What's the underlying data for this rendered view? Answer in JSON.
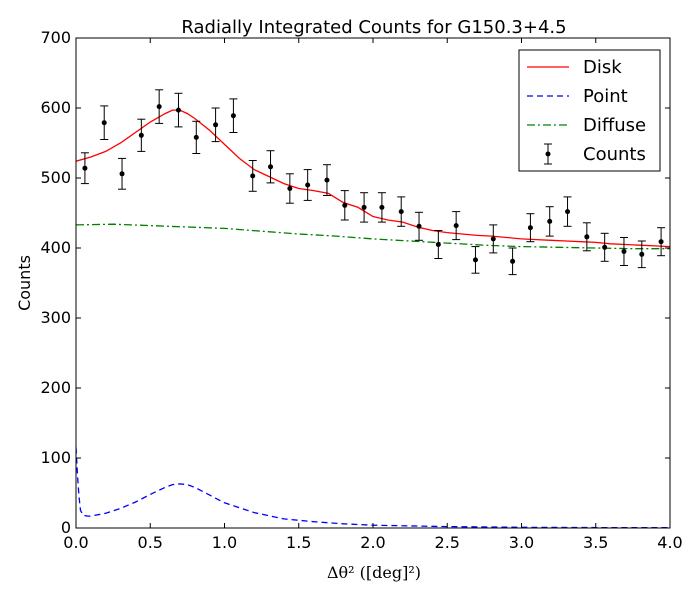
{
  "chart_data": {
    "type": "line",
    "title": "Radially Integrated Counts for G150.3+4.5",
    "xlabel": "Δθ² ([deg]²)",
    "ylabel": "Counts",
    "xlim": [
      0.0,
      4.0
    ],
    "ylim": [
      0,
      700
    ],
    "x_ticks": [
      "0.0",
      "0.5",
      "1.0",
      "1.5",
      "2.0",
      "2.5",
      "3.0",
      "3.5",
      "4.0"
    ],
    "y_ticks": [
      "0",
      "100",
      "200",
      "300",
      "400",
      "500",
      "600",
      "700"
    ],
    "legend_position": "top-right",
    "grid": false,
    "series": [
      {
        "name": "Disk",
        "color": "#ff0000",
        "style": "solid",
        "x": [
          0.0,
          0.1,
          0.2,
          0.3,
          0.4,
          0.5,
          0.6,
          0.65,
          0.7,
          0.75,
          0.8,
          0.9,
          1.0,
          1.1,
          1.2,
          1.3,
          1.4,
          1.5,
          1.6,
          1.7,
          1.8,
          1.9,
          2.0,
          2.1,
          2.2,
          2.3,
          2.4,
          2.5,
          2.6,
          2.7,
          2.8,
          2.9,
          3.0,
          3.1,
          3.2,
          3.3,
          3.4,
          3.5,
          3.6,
          3.7,
          3.8,
          3.9,
          4.0
        ],
        "y": [
          524,
          530,
          538,
          550,
          565,
          580,
          592,
          597,
          597,
          592,
          585,
          568,
          548,
          528,
          512,
          502,
          492,
          485,
          482,
          478,
          465,
          458,
          445,
          440,
          437,
          430,
          425,
          422,
          420,
          418,
          417,
          415,
          413,
          412,
          411,
          410,
          409,
          408,
          406,
          405,
          404,
          403,
          402
        ]
      },
      {
        "name": "Point",
        "color": "#0000ff",
        "style": "dashed",
        "x": [
          0.0,
          0.01,
          0.02,
          0.03,
          0.05,
          0.08,
          0.1,
          0.2,
          0.3,
          0.4,
          0.5,
          0.6,
          0.65,
          0.7,
          0.75,
          0.8,
          0.9,
          1.0,
          1.2,
          1.4,
          1.6,
          1.8,
          2.0,
          2.5,
          3.0,
          3.5,
          4.0
        ],
        "y": [
          115,
          75,
          45,
          25,
          18,
          17,
          17,
          21,
          28,
          37,
          48,
          58,
          62,
          63,
          62,
          58,
          47,
          36,
          22,
          13,
          9,
          6,
          4,
          2,
          1,
          0.5,
          0.5
        ]
      },
      {
        "name": "Diffuse",
        "color": "#008000",
        "style": "dashdot",
        "x": [
          0.0,
          0.25,
          0.5,
          0.75,
          1.0,
          1.25,
          1.5,
          1.75,
          2.0,
          2.25,
          2.5,
          2.75,
          3.0,
          3.25,
          3.5,
          3.75,
          4.0
        ],
        "y": [
          433,
          434,
          432,
          430,
          428,
          424,
          420,
          417,
          413,
          410,
          407,
          404,
          402,
          401,
          400,
          399,
          399
        ]
      },
      {
        "name": "Counts",
        "color": "#000000",
        "style": "errorbar",
        "x": [
          0.06,
          0.19,
          0.31,
          0.44,
          0.56,
          0.69,
          0.81,
          0.94,
          1.06,
          1.19,
          1.31,
          1.44,
          1.56,
          1.69,
          1.81,
          1.94,
          2.06,
          2.19,
          2.31,
          2.44,
          2.56,
          2.69,
          2.81,
          2.94,
          3.06,
          3.19,
          3.31,
          3.44,
          3.56,
          3.69,
          3.81,
          3.94
        ],
        "y": [
          514,
          579,
          506,
          561,
          602,
          597,
          558,
          576,
          589,
          503,
          516,
          485,
          490,
          497,
          461,
          458,
          458,
          452,
          431,
          405,
          432,
          383,
          413,
          381,
          429,
          438,
          452,
          416,
          401,
          395,
          391,
          409
        ],
        "err": [
          22,
          24,
          22,
          23,
          24,
          24,
          23,
          24,
          24,
          22,
          23,
          21,
          22,
          22,
          21,
          21,
          21,
          21,
          20,
          20,
          20,
          19,
          20,
          19,
          20,
          21,
          21,
          20,
          20,
          20,
          19,
          20
        ]
      }
    ]
  }
}
